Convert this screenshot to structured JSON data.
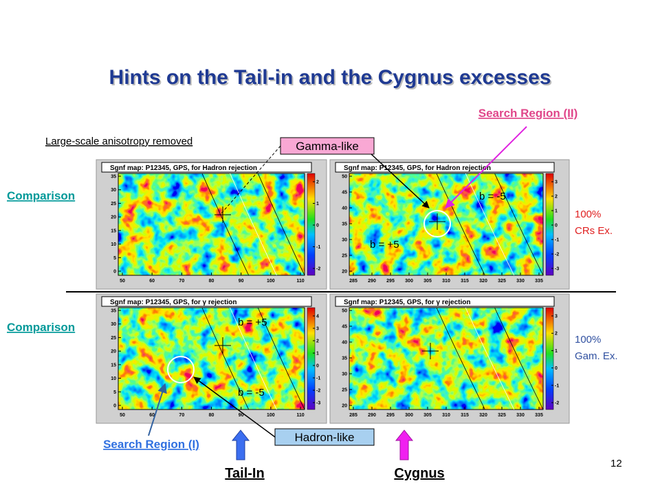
{
  "title": "Hints on the Tail-in and the Cygnus excesses",
  "search_region_2": "Search Region (II)",
  "anisotropy_note": "Large-scale anisotropy removed",
  "gamma_like": "Gamma-like",
  "hadron_like": "Hadron-like",
  "comparison": [
    "Comparison",
    "Comparison"
  ],
  "search_region_1": "Search Region (I)",
  "cr_label": [
    "100%",
    "CRs Ex."
  ],
  "gam_label": [
    "100%",
    "Gam. Ex."
  ],
  "tail_in": "Tail-In",
  "cygnus": "Cygnus",
  "page_number": "12",
  "panels": [
    {
      "title": "Sgnf map: P12345, GPS, for Hadron rejection",
      "yticks": [
        35,
        30,
        25,
        20,
        15,
        10,
        5,
        0
      ],
      "xticks": [
        50,
        60,
        70,
        80,
        90,
        100,
        110
      ],
      "colorbar_ticks": [
        2,
        1,
        0,
        -1,
        -2
      ]
    },
    {
      "title": "Sgnf map: P12345, GPS, for Hadron rejection",
      "yticks": [
        50,
        45,
        40,
        35,
        30,
        25,
        20
      ],
      "xticks": [
        285,
        290,
        295,
        300,
        305,
        310,
        315,
        320,
        325,
        330,
        335
      ],
      "colorbar_ticks": [
        3,
        2,
        1,
        0,
        -1,
        -2,
        -3
      ],
      "labels": [
        "b = -5",
        "b = +5"
      ]
    },
    {
      "title": "Sgnf map: P12345, GPS, for γ rejection",
      "yticks": [
        35,
        30,
        25,
        20,
        15,
        10,
        5,
        0
      ],
      "xticks": [
        50,
        60,
        70,
        80,
        90,
        100,
        110
      ],
      "colorbar_ticks": [
        4,
        3,
        2,
        1,
        0,
        -1,
        -2,
        -3
      ],
      "labels": [
        "b = +5",
        "b = -5"
      ]
    },
    {
      "title": "Sgnf map: P12345, GPS, for γ rejection",
      "yticks": [
        50,
        45,
        40,
        35,
        30,
        25,
        20
      ],
      "xticks": [
        285,
        290,
        295,
        300,
        305,
        310,
        315,
        320,
        325,
        330,
        335
      ],
      "colorbar_ticks": [
        3,
        2,
        1,
        0,
        -1,
        -2
      ]
    }
  ]
}
